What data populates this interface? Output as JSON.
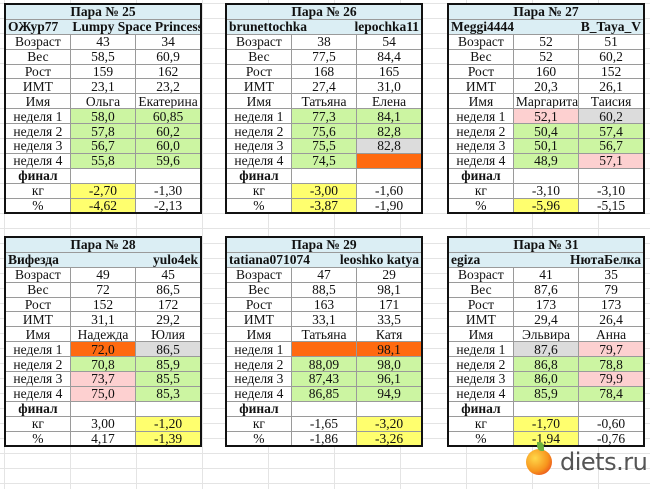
{
  "row_labels": [
    "Возраст",
    "Вес",
    "Рост",
    "ИМТ",
    "Имя",
    "неделя 1",
    "неделя 2",
    "неделя 3",
    "неделя 4",
    "финал",
    "кг",
    "%"
  ],
  "colors": {
    "g": "#ccf5a2",
    "p": "#fdd0d0",
    "s": "#dcdcdc",
    "o": "#ff6a10",
    "y": "#ffff6e",
    "header": "#dbeef4"
  },
  "tables": [
    {
      "title": "Пара № 25",
      "user1": "ОЖур77",
      "user2": "Lumpy Space Princess",
      "c1": [
        "43",
        "58,5",
        "159",
        "23,1",
        "Ольга",
        "58,0",
        "57,8",
        "56,7",
        "55,8",
        "",
        "-2,70",
        "-4,62"
      ],
      "c2": [
        "34",
        "60,9",
        "162",
        "23,2",
        "Екатерина",
        "60,85",
        "60,2",
        "60,0",
        "59,6",
        "",
        "-1,30",
        "-2,13"
      ],
      "k1": [
        "",
        "",
        "",
        "",
        "",
        "g",
        "g",
        "g",
        "g",
        "",
        "y",
        "y"
      ],
      "k2": [
        "",
        "",
        "",
        "",
        "",
        "g",
        "g",
        "g",
        "g",
        "",
        "",
        ""
      ]
    },
    {
      "title": "Пара № 26",
      "user1": "brunettochka",
      "user2": "lepochka11",
      "c1": [
        "38",
        "77,5",
        "168",
        "27,4",
        "Татьяна",
        "77,3",
        "75,6",
        "75,5",
        "74,5",
        "",
        "-3,00",
        "-3,87"
      ],
      "c2": [
        "54",
        "84,4",
        "165",
        "31,0",
        "Елена",
        "84,1",
        "82,8",
        "82,8",
        "",
        "",
        "-1,60",
        "-1,90"
      ],
      "k1": [
        "",
        "",
        "",
        "",
        "",
        "g",
        "g",
        "g",
        "g",
        "",
        "y",
        "y"
      ],
      "k2": [
        "",
        "",
        "",
        "",
        "",
        "g",
        "g",
        "s",
        "o",
        "",
        "",
        ""
      ]
    },
    {
      "title": "Пара № 27",
      "user1": "Meggi4444",
      "user2": "B_Taya_V",
      "c1": [
        "52",
        "52",
        "160",
        "20,3",
        "Маргарита",
        "52,1",
        "50,4",
        "50,1",
        "48,9",
        "",
        "-3,10",
        "-5,96"
      ],
      "c2": [
        "51",
        "60,2",
        "152",
        "26,1",
        "Таисия",
        "60,2",
        "57,4",
        "56,7",
        "57,1",
        "",
        "-3,10",
        "-5,15"
      ],
      "k1": [
        "",
        "",
        "",
        "",
        "",
        "p",
        "g",
        "g",
        "g",
        "",
        "",
        "y"
      ],
      "k2": [
        "",
        "",
        "",
        "",
        "",
        "s",
        "g",
        "g",
        "p",
        "",
        "",
        ""
      ]
    },
    {
      "title": "Пара № 28",
      "user1": "Вифезда",
      "user2": "yulo4ek",
      "c1": [
        "49",
        "72",
        "152",
        "31,1",
        "Надежда",
        "72,0",
        "70,8",
        "73,7",
        "75,0",
        "",
        "3,00",
        "4,17"
      ],
      "c2": [
        "45",
        "86,5",
        "172",
        "29,2",
        "Юлия",
        "86,5",
        "85,9",
        "85,5",
        "85,3",
        "",
        "-1,20",
        "-1,39"
      ],
      "k1": [
        "",
        "",
        "",
        "",
        "",
        "o",
        "g",
        "p",
        "p",
        "",
        "",
        ""
      ],
      "k2": [
        "",
        "",
        "",
        "",
        "",
        "s",
        "g",
        "g",
        "g",
        "",
        "y",
        "y"
      ]
    },
    {
      "title": "Пара № 29",
      "user1": "tatiana071074",
      "user2": "leoshko katya",
      "c1": [
        "47",
        "88,5",
        "163",
        "33,1",
        "Татьяна",
        "",
        "88,09",
        "87,43",
        "86,85",
        "",
        "-1,65",
        "-1,86"
      ],
      "c2": [
        "29",
        "98,1",
        "171",
        "33,5",
        "Катя",
        "98,1",
        "98,0",
        "96,1",
        "94,9",
        "",
        "-3,20",
        "-3,26"
      ],
      "k1": [
        "",
        "",
        "",
        "",
        "",
        "o",
        "g",
        "g",
        "g",
        "",
        "",
        ""
      ],
      "k2": [
        "",
        "",
        "",
        "",
        "",
        "o",
        "g",
        "g",
        "g",
        "",
        "y",
        "y"
      ]
    },
    {
      "title": "Пара № 31",
      "user1": "egiza",
      "user2": "НютаБелка",
      "c1": [
        "41",
        "87,6",
        "173",
        "29,4",
        "Эльвира",
        "87,6",
        "86,8",
        "86,0",
        "85,9",
        "",
        "-1,70",
        "-1,94"
      ],
      "c2": [
        "35",
        "79",
        "173",
        "26,4",
        "Анна",
        "79,7",
        "78,8",
        "79,9",
        "78,4",
        "",
        "-0,60",
        "-0,76"
      ],
      "k1": [
        "",
        "",
        "",
        "",
        "",
        "s",
        "g",
        "g",
        "g",
        "",
        "y",
        "y"
      ],
      "k2": [
        "",
        "",
        "",
        "",
        "",
        "p",
        "g",
        "p",
        "g",
        "",
        "",
        ""
      ]
    }
  ],
  "logo": {
    "text": "diets.ru"
  }
}
